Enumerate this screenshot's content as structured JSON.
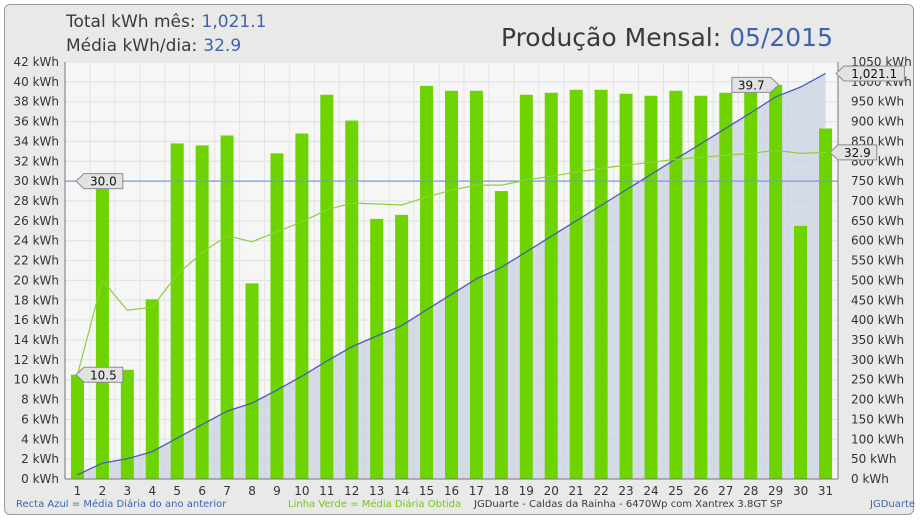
{
  "header": {
    "total_label": "Total kWh mês:",
    "total_value": "1,021.1",
    "avg_label": "Média kWh/dia:",
    "avg_value": "32.9",
    "title_label": "Produção Mensal:",
    "title_value": "05/2015"
  },
  "footer": {
    "blue_note": "Recta Azul = Média Diária do ano anterior",
    "green_note": "Linha Verde = Média Diária Obtida",
    "system": "JGDuarte  -  Caldas da Rainha  -  6470Wp com Xantrex 3.8GT SP",
    "credit": "JGDuarte"
  },
  "colors": {
    "bar": "#6dd400",
    "cumulative_line": "#4a5bb8",
    "cumulative_fill": "#c9d0e2",
    "average_line": "#8fcf3c",
    "reference_line": "#6f9fd8",
    "plot_background": "#f6f6f6",
    "frame_background": "#e9e9e7"
  },
  "chart_data": {
    "type": "bar",
    "categories": [
      "1",
      "2",
      "3",
      "4",
      "5",
      "6",
      "7",
      "8",
      "9",
      "10",
      "11",
      "12",
      "13",
      "14",
      "15",
      "16",
      "17",
      "18",
      "19",
      "20",
      "21",
      "22",
      "23",
      "24",
      "25",
      "26",
      "27",
      "28",
      "29",
      "30",
      "31"
    ],
    "left_axis": {
      "ylim": [
        0,
        42
      ],
      "step": 2,
      "unit": "kWh"
    },
    "right_axis": {
      "ylim": [
        0,
        1050
      ],
      "step": 50,
      "unit": "kWh"
    },
    "series": [
      {
        "kind": "bar",
        "axis": "left",
        "values": [
          10.5,
          29.5,
          11.0,
          18.1,
          33.8,
          33.6,
          34.6,
          19.7,
          32.8,
          34.8,
          38.7,
          36.1,
          26.2,
          26.6,
          39.6,
          39.1,
          39.1,
          29.0,
          38.7,
          38.9,
          39.2,
          39.2,
          38.8,
          38.6,
          39.1,
          38.6,
          38.9,
          38.9,
          39.7,
          25.5,
          35.3
        ]
      },
      {
        "kind": "line",
        "axis": "left",
        "values": [
          10.5,
          20.0,
          17.0,
          17.3,
          20.6,
          22.8,
          24.5,
          23.9,
          24.9,
          25.9,
          27.1,
          27.8,
          27.7,
          27.6,
          28.4,
          29.1,
          29.6,
          29.6,
          30.1,
          30.5,
          30.9,
          31.3,
          31.6,
          31.9,
          32.2,
          32.4,
          32.6,
          32.8,
          33.1,
          32.8,
          32.9
        ]
      },
      {
        "kind": "area",
        "axis": "right",
        "values": [
          10.5,
          40,
          51,
          69,
          103,
          137,
          171,
          191,
          224,
          259,
          297,
          333,
          360,
          386,
          426,
          465,
          504,
          533,
          572,
          611,
          650,
          689,
          728,
          767,
          806,
          844,
          883,
          922,
          962,
          987,
          1021.1
        ]
      }
    ],
    "reference_line": {
      "axis": "left",
      "value": 30.0,
      "label": "30.0"
    },
    "value_labels": [
      {
        "text": "10.5",
        "axis": "left",
        "value": 10.5,
        "at": "left"
      },
      {
        "text": "30.0",
        "axis": "left",
        "value": 30.0,
        "at": "left"
      },
      {
        "text": "39.7",
        "axis": "left",
        "value": 39.7,
        "at": "day 29"
      },
      {
        "text": "1,021.1",
        "axis": "right",
        "value": 1021.1,
        "at": "right"
      },
      {
        "text": "32.9",
        "axis": "left",
        "value": 32.9,
        "at": "right"
      }
    ],
    "grid": true
  }
}
